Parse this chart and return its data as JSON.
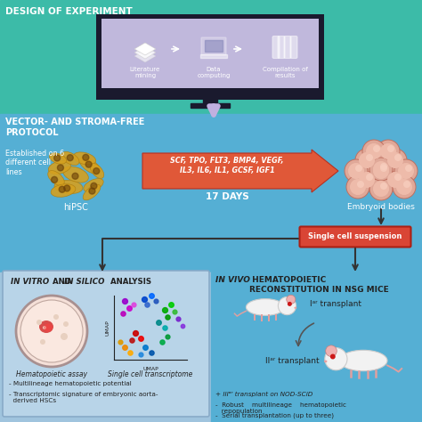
{
  "bg_top": "#3cbba8",
  "bg_mid": "#55afd4",
  "bg_bot_left": "#a0c4de",
  "bg_bot_right": "#55afd4",
  "monitor_bg": "#c0b8dc",
  "monitor_border": "#1a1a2e",
  "arrow_lavender": "#c0b0e0",
  "red_arrow": "#e05838",
  "red_box": "#d94535",
  "white": "#ffffff",
  "dark": "#222222",
  "title_top": "DESIGN OF EXPERIMENT",
  "title_mid_left": "VECTOR- AND STROMA-FREE\nPROTOCOL",
  "label_lit": "Literature\nmining",
  "label_data": "Data\ncomputing",
  "label_comp": "Compilation of\nresults",
  "label_hipsc": "hiPSC",
  "label_estab": "Established on 6\ndifferent cell\nlines",
  "label_cytokines": "SCF, TPO, FLT3, BMP4, VEGF,\nIL3, IL6, IL1, GCSF, IGF1",
  "label_days": "17 DAYS",
  "label_embryoid": "Embryoid bodies",
  "label_single": "Single cell suspension",
  "label_hema_assay": "Hematopoietic assay",
  "label_sc_trans": "Single cell transcriptome",
  "label_umap_x": "UMAP",
  "label_umap_y": "UMAP",
  "label_bullet1": "- Multilineage hematopoietic potential",
  "label_bullet2": "- Transcriptomic signature of embryonic aorta-\n  derived HSCs",
  "label_rbullet1": "-  Robust    multilineage    hematopoietic\n   repopulation",
  "label_rbullet2": "-  Serial transplantation (up to three)",
  "label_i_trans": "Iᵃʳ transplant",
  "label_ii_trans": "IIᵃʳ transplant",
  "label_iii_trans": "+ IIIᵃʳ transplant on NOD-SCiD",
  "label_vitro_italic1": "IN VITRO",
  "label_vitro_and": " AND ",
  "label_vitro_italic2": "IN SILICO",
  "label_vitro_rest": " ANALYSIS",
  "label_vivo_italic": "IN VIVO",
  "label_vivo_rest": " HEMATOPOIETIC\nRECONSTITUTION IN NSG MICE"
}
